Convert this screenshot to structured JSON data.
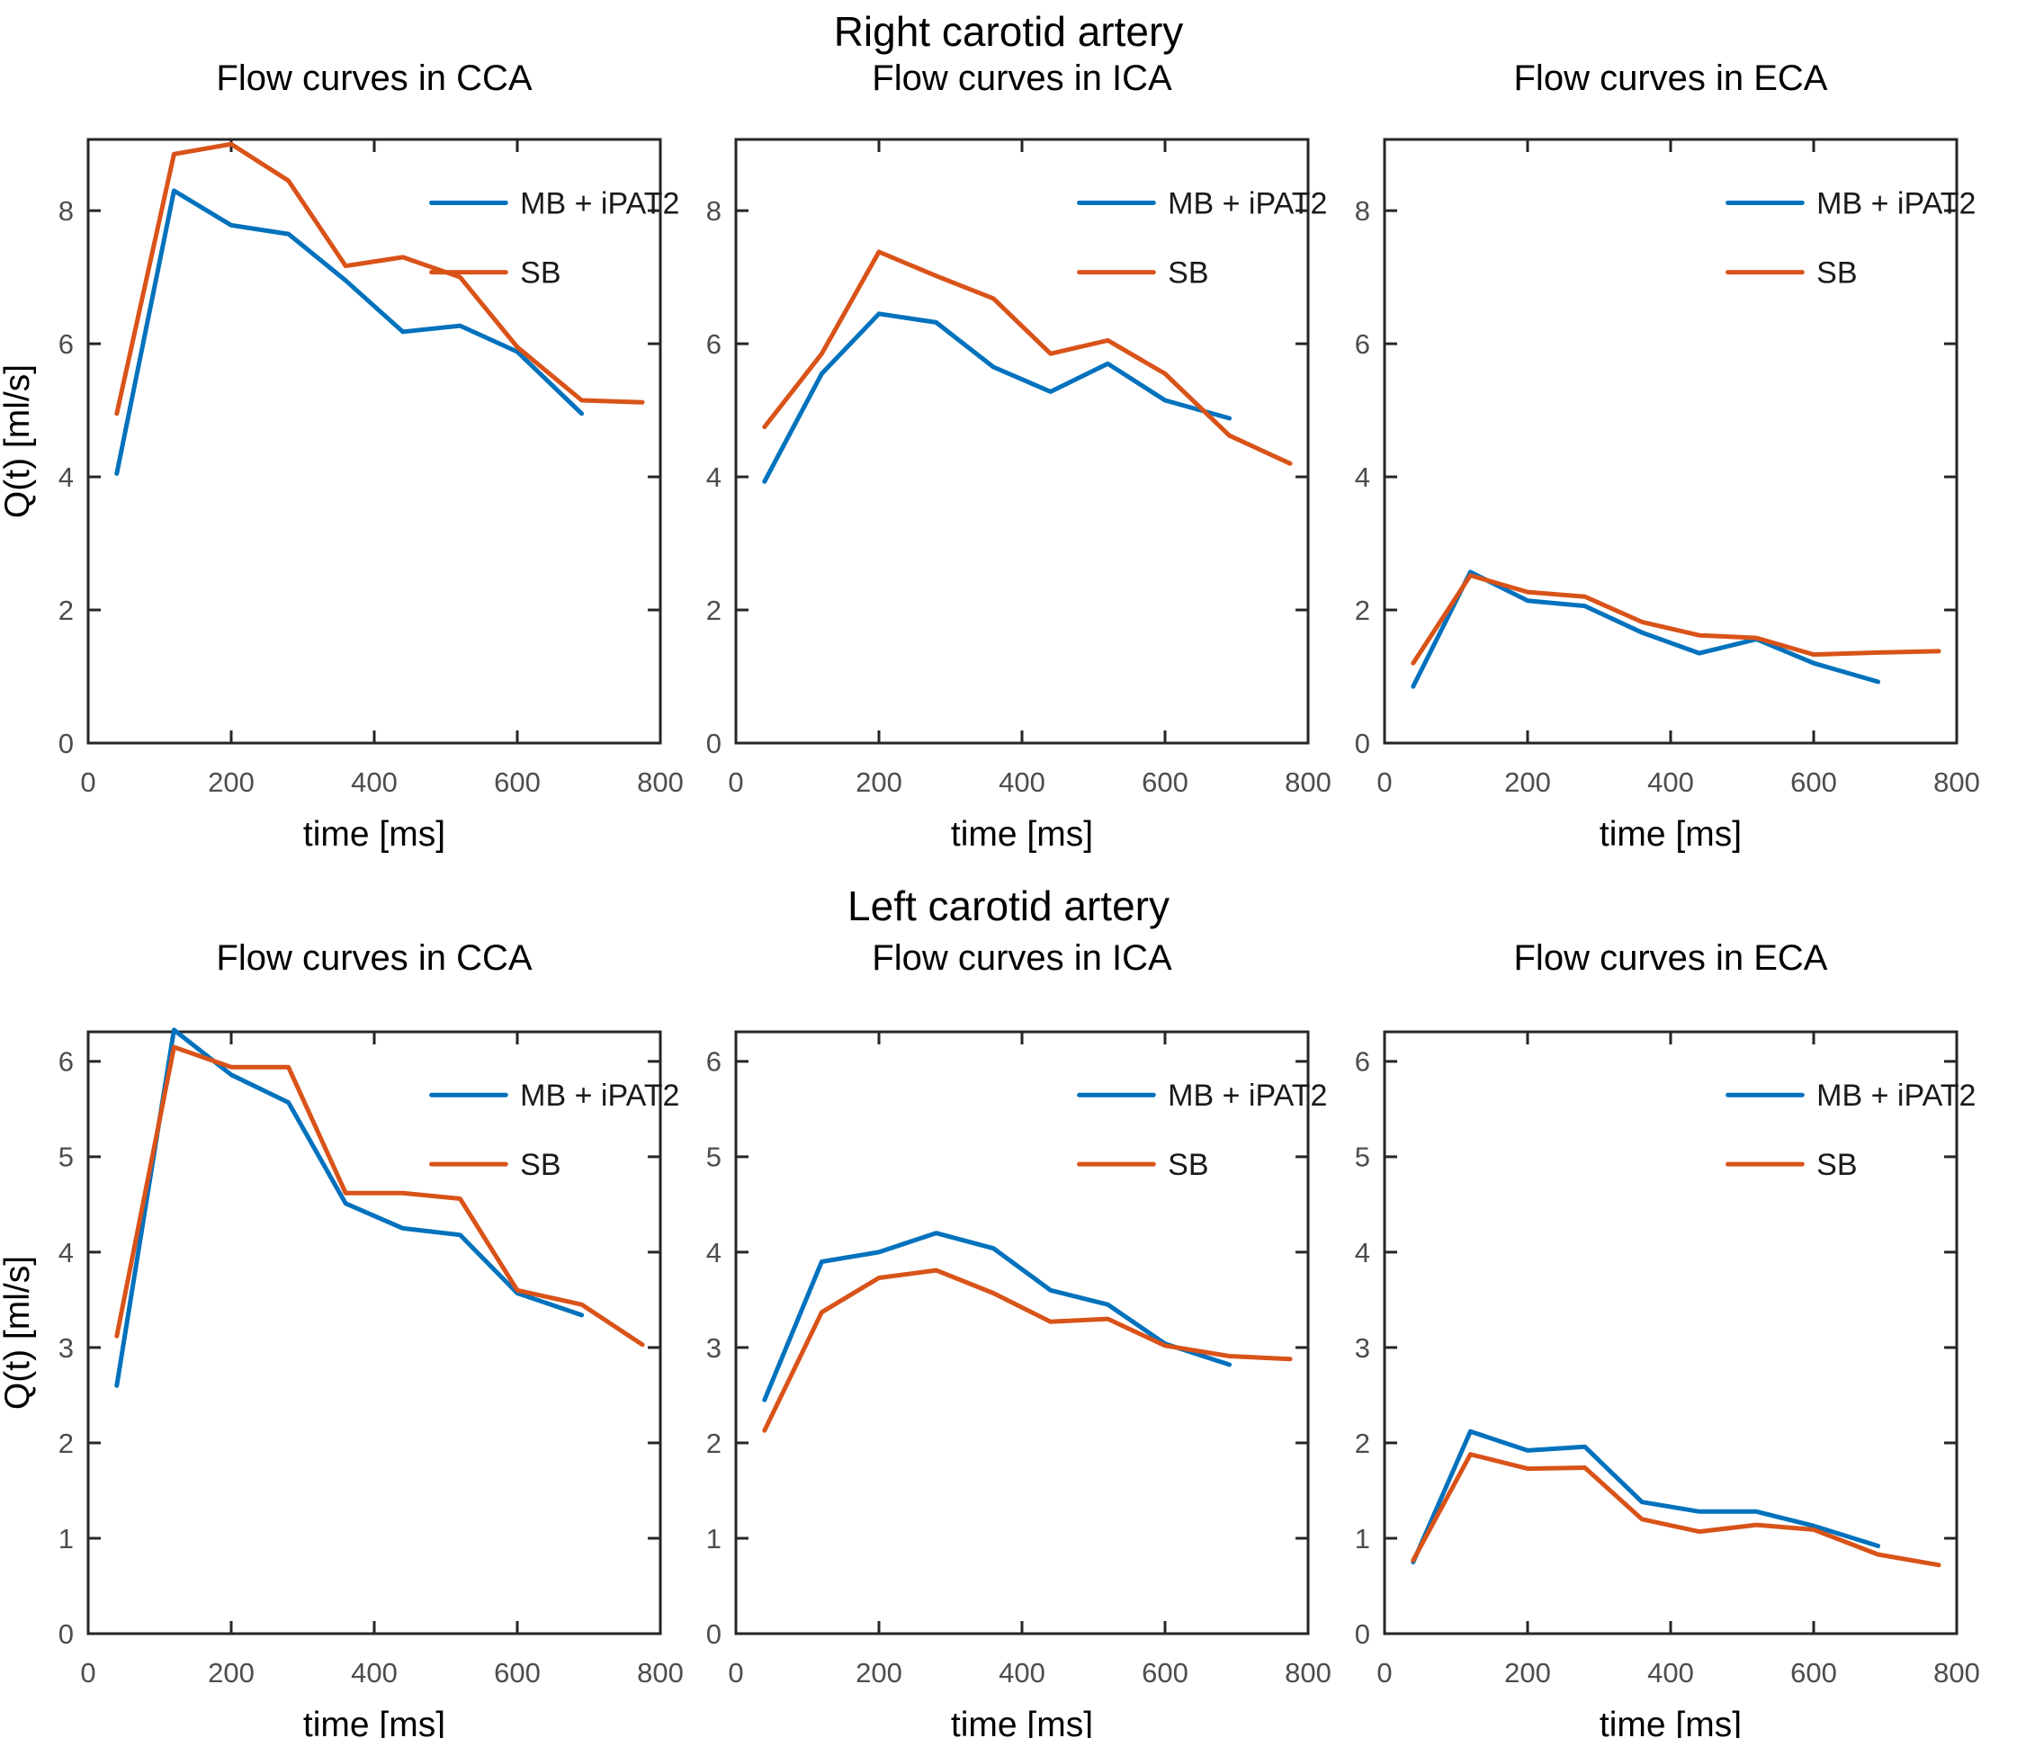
{
  "page": {
    "suptitle_top": "Right carotid artery",
    "suptitle_bottom": "Left carotid artery"
  },
  "colors": {
    "mb_ipat2": "#0072BD",
    "sb": "#D95319",
    "axis": "#262626",
    "tick_label": "#4D4D4D",
    "title": "#000000"
  },
  "legend": {
    "items": [
      {
        "key": "mb_ipat2",
        "label": "MB + iPAT2"
      },
      {
        "key": "sb",
        "label": "SB"
      }
    ]
  },
  "axes_common": {
    "xlabel": "time [ms]",
    "ylabel": "Q(t) [ml/s]",
    "xlim": [
      0,
      800
    ],
    "xticks": [
      0,
      200,
      400,
      600,
      800
    ]
  },
  "chart_data": [
    {
      "id": "right-cca",
      "type": "line",
      "row": 0,
      "col": 0,
      "title": "Flow curves in CCA",
      "ylim": [
        0,
        9.07
      ],
      "yticks": [
        0,
        2,
        4,
        6,
        8
      ],
      "series": [
        {
          "key": "mb_ipat2",
          "name": "MB + iPAT2",
          "x": [
            40,
            120,
            200,
            280,
            360,
            440,
            520,
            600,
            690
          ],
          "y": [
            4.05,
            8.3,
            7.78,
            7.65,
            6.95,
            6.18,
            6.27,
            5.88,
            4.95
          ]
        },
        {
          "key": "sb",
          "name": "SB",
          "x": [
            40,
            120,
            200,
            280,
            360,
            440,
            520,
            600,
            690,
            775
          ],
          "y": [
            4.95,
            8.85,
            9.0,
            8.45,
            7.17,
            7.3,
            7.0,
            5.95,
            5.15,
            5.12
          ]
        }
      ]
    },
    {
      "id": "right-ica",
      "type": "line",
      "row": 0,
      "col": 1,
      "title": "Flow curves in ICA",
      "ylim": [
        0,
        9.07
      ],
      "yticks": [
        0,
        2,
        4,
        6,
        8
      ],
      "series": [
        {
          "key": "mb_ipat2",
          "name": "MB + iPAT2",
          "x": [
            40,
            120,
            200,
            280,
            360,
            440,
            520,
            600,
            690
          ],
          "y": [
            3.93,
            5.55,
            6.45,
            6.32,
            5.65,
            5.28,
            5.7,
            5.15,
            4.88
          ]
        },
        {
          "key": "sb",
          "name": "SB",
          "x": [
            40,
            120,
            200,
            280,
            360,
            440,
            520,
            600,
            690,
            775
          ],
          "y": [
            4.75,
            5.85,
            7.38,
            7.02,
            6.68,
            5.85,
            6.05,
            5.55,
            4.62,
            4.2
          ]
        }
      ]
    },
    {
      "id": "right-eca",
      "type": "line",
      "row": 0,
      "col": 2,
      "title": "Flow curves in ECA",
      "ylim": [
        0,
        9.07
      ],
      "yticks": [
        0,
        2,
        4,
        6,
        8
      ],
      "series": [
        {
          "key": "mb_ipat2",
          "name": "MB + iPAT2",
          "x": [
            40,
            120,
            200,
            280,
            360,
            440,
            520,
            600,
            690
          ],
          "y": [
            0.85,
            2.57,
            2.14,
            2.06,
            1.66,
            1.35,
            1.56,
            1.2,
            0.92
          ]
        },
        {
          "key": "sb",
          "name": "SB",
          "x": [
            40,
            120,
            200,
            280,
            360,
            440,
            520,
            600,
            690,
            775
          ],
          "y": [
            1.2,
            2.52,
            2.27,
            2.2,
            1.82,
            1.62,
            1.58,
            1.33,
            1.36,
            1.38
          ]
        }
      ]
    },
    {
      "id": "left-cca",
      "type": "line",
      "row": 1,
      "col": 0,
      "title": "Flow curves in CCA",
      "ylim": [
        0,
        6.31
      ],
      "yticks": [
        0,
        1,
        2,
        3,
        4,
        5,
        6
      ],
      "series": [
        {
          "key": "mb_ipat2",
          "name": "MB + iPAT2",
          "x": [
            40,
            120,
            200,
            280,
            360,
            440,
            520,
            600,
            690
          ],
          "y": [
            2.6,
            6.33,
            5.86,
            5.57,
            4.51,
            4.25,
            4.18,
            3.57,
            3.34
          ]
        },
        {
          "key": "sb",
          "name": "SB",
          "x": [
            40,
            120,
            200,
            280,
            360,
            440,
            520,
            600,
            690,
            775
          ],
          "y": [
            3.12,
            6.15,
            5.94,
            5.94,
            4.62,
            4.62,
            4.56,
            3.6,
            3.45,
            3.03
          ]
        }
      ]
    },
    {
      "id": "left-ica",
      "type": "line",
      "row": 1,
      "col": 1,
      "title": "Flow curves in ICA",
      "ylim": [
        0,
        6.31
      ],
      "yticks": [
        0,
        1,
        2,
        3,
        4,
        5,
        6
      ],
      "series": [
        {
          "key": "mb_ipat2",
          "name": "MB + iPAT2",
          "x": [
            40,
            120,
            200,
            280,
            360,
            440,
            520,
            600,
            690
          ],
          "y": [
            2.45,
            3.9,
            4.0,
            4.2,
            4.04,
            3.6,
            3.45,
            3.04,
            2.82
          ]
        },
        {
          "key": "sb",
          "name": "SB",
          "x": [
            40,
            120,
            200,
            280,
            360,
            440,
            520,
            600,
            690,
            775
          ],
          "y": [
            2.13,
            3.37,
            3.73,
            3.81,
            3.57,
            3.27,
            3.3,
            3.02,
            2.91,
            2.88
          ]
        }
      ]
    },
    {
      "id": "left-eca",
      "type": "line",
      "row": 1,
      "col": 2,
      "title": "Flow curves in ECA",
      "ylim": [
        0,
        6.31
      ],
      "yticks": [
        0,
        1,
        2,
        3,
        4,
        5,
        6
      ],
      "series": [
        {
          "key": "mb_ipat2",
          "name": "MB + iPAT2",
          "x": [
            40,
            120,
            200,
            280,
            360,
            440,
            520,
            600,
            690
          ],
          "y": [
            0.75,
            2.12,
            1.92,
            1.96,
            1.38,
            1.28,
            1.28,
            1.13,
            0.92
          ]
        },
        {
          "key": "sb",
          "name": "SB",
          "x": [
            40,
            120,
            200,
            280,
            360,
            440,
            520,
            600,
            690,
            775
          ],
          "y": [
            0.77,
            1.88,
            1.73,
            1.74,
            1.2,
            1.07,
            1.14,
            1.09,
            0.83,
            0.72
          ]
        }
      ]
    }
  ]
}
